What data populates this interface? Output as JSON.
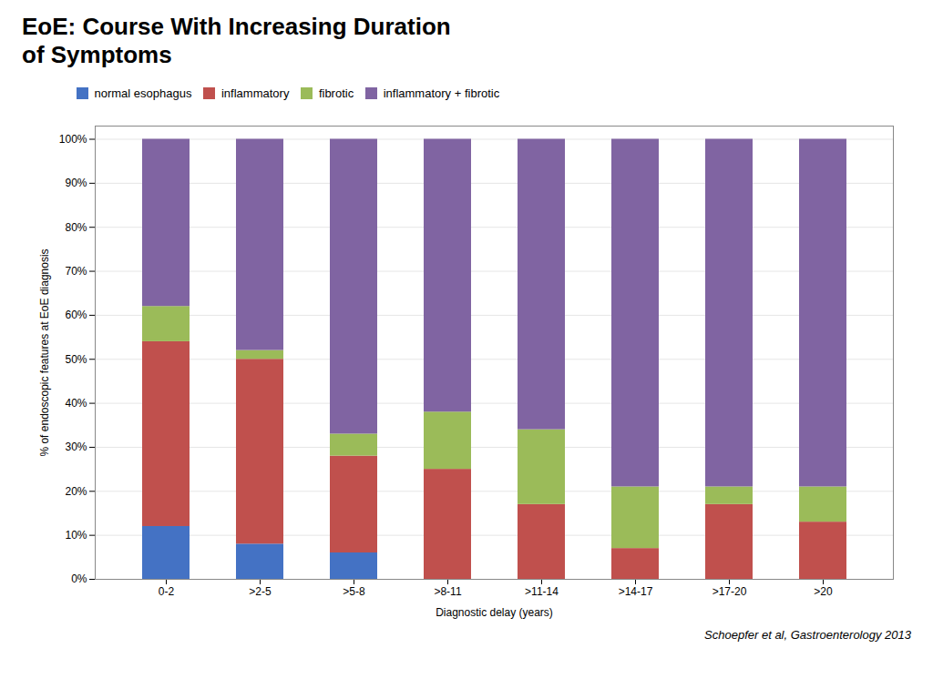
{
  "chart_data": {
    "type": "bar",
    "stacked": true,
    "title": "EoE: Course With Increasing Duration\nof Symptoms",
    "xlabel": "Diagnostic delay (years)",
    "ylabel": "% of endoscopic features at EoE diagnosis",
    "categories": [
      "0-2",
      ">2-5",
      ">5-8",
      ">8-11",
      ">11-14",
      ">14-17",
      ">17-20",
      ">20"
    ],
    "series": [
      {
        "name": "normal esophagus",
        "color": "#4472C4",
        "values": [
          12,
          8,
          6,
          0,
          0,
          0,
          0,
          0
        ]
      },
      {
        "name": "inflammatory",
        "color": "#C0504D",
        "values": [
          42,
          42,
          22,
          25,
          17,
          7,
          17,
          13
        ]
      },
      {
        "name": "fibrotic",
        "color": "#9BBB59",
        "values": [
          8,
          2,
          5,
          13,
          17,
          14,
          4,
          8
        ]
      },
      {
        "name": "inflammatory + fibrotic",
        "color": "#8064A2",
        "values": [
          38,
          48,
          67,
          62,
          66,
          79,
          79,
          79
        ]
      }
    ],
    "ylim": [
      0,
      103
    ],
    "yticks": [
      {
        "value": 0,
        "label": "0%"
      },
      {
        "value": 10,
        "label": "10%"
      },
      {
        "value": 20,
        "label": "20%"
      },
      {
        "value": 30,
        "label": "30%"
      },
      {
        "value": 40,
        "label": "40%"
      },
      {
        "value": 50,
        "label": "50%"
      },
      {
        "value": 60,
        "label": "60%"
      },
      {
        "value": 70,
        "label": "70%"
      },
      {
        "value": 80,
        "label": "80%"
      },
      {
        "value": 90,
        "label": "90%"
      },
      {
        "value": 100,
        "label": "100%"
      }
    ],
    "grid": true,
    "legend": "upper left",
    "annotations": [
      "Schoepfer et al, Gastroenterology 2013"
    ]
  }
}
